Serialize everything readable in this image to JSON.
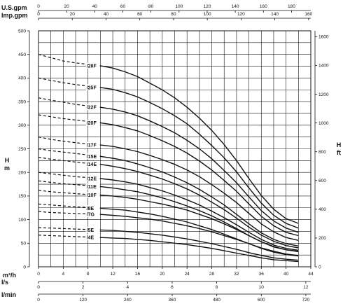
{
  "chart_data": {
    "type": "line",
    "x": [
      0,
      2,
      4,
      6,
      8,
      10,
      12,
      14,
      16,
      18,
      20,
      22,
      24,
      26,
      28,
      30,
      32,
      34,
      36,
      38,
      40,
      42
    ],
    "x_unit_label": "m³/h",
    "xlim": [
      0,
      44
    ],
    "x_ticks": [
      0,
      4,
      8,
      12,
      16,
      20,
      24,
      28,
      32,
      36,
      40,
      44
    ],
    "y_left_label": "H\nm",
    "ylim": [
      0,
      500
    ],
    "y_ticks": [
      0,
      50,
      100,
      150,
      200,
      250,
      300,
      350,
      400,
      450,
      500
    ],
    "y_right_label": "H\nft",
    "y_right_ticks": [
      0,
      200,
      400,
      600,
      800,
      1000,
      1200,
      1400,
      1600
    ],
    "top_axes": [
      {
        "label": "U.S.gpm",
        "ticks": [
          0,
          20,
          40,
          60,
          80,
          100,
          120,
          140,
          160,
          180
        ]
      },
      {
        "label": "Imp.gpm",
        "ticks": [
          0,
          20,
          40,
          60,
          80,
          100,
          120,
          140,
          160
        ]
      }
    ],
    "bottom_axes": [
      {
        "label": "l/s",
        "ticks": [
          0,
          2,
          4,
          6,
          8,
          10,
          12
        ]
      },
      {
        "label": "l/min",
        "ticks": [
          0,
          120,
          240,
          360,
          480,
          600,
          720
        ]
      }
    ],
    "grid": true,
    "series": [
      {
        "name": "/28F",
        "shutoff": 450,
        "values": [
          450,
          443,
          436,
          432,
          429,
          426,
          421,
          413,
          403,
          389,
          375,
          358,
          338,
          315,
          289,
          259,
          225,
          187,
          151,
          122,
          102,
          92
        ]
      },
      {
        "name": "/25F",
        "shutoff": 400,
        "values": [
          400,
          395,
          390,
          386,
          383,
          380,
          376,
          369,
          360,
          348,
          335,
          320,
          303,
          281,
          257,
          231,
          201,
          167,
          135,
          109,
          92,
          82
        ]
      },
      {
        "name": "/22F",
        "shutoff": 358,
        "values": [
          358,
          353,
          349,
          344,
          341,
          338,
          334,
          328,
          320,
          309,
          297,
          284,
          268,
          250,
          229,
          204,
          178,
          148,
          119,
          97,
          82,
          73
        ]
      },
      {
        "name": "/20F",
        "shutoff": 322,
        "values": [
          322,
          318,
          314,
          311,
          308,
          305,
          301,
          295,
          288,
          278,
          267,
          255,
          241,
          224,
          205,
          183,
          160,
          133,
          107,
          87,
          73,
          66
        ]
      },
      {
        "name": "/17F",
        "shutoff": 275,
        "values": [
          275,
          270,
          266,
          263,
          260,
          258,
          255,
          250,
          244,
          236,
          227,
          217,
          205,
          191,
          174,
          156,
          136,
          113,
          91,
          74,
          62,
          56
        ]
      },
      {
        "name": "/15E",
        "shutoff": 250,
        "values": [
          250,
          246,
          243,
          240,
          237,
          234,
          230,
          225,
          218,
          210,
          201,
          190,
          178,
          164,
          148,
          131,
          111,
          91,
          72,
          58,
          49,
          44
        ]
      },
      {
        "name": "/14E",
        "shutoff": 232,
        "values": [
          232,
          228,
          225,
          222,
          219,
          217,
          213,
          208,
          202,
          194,
          186,
          176,
          165,
          152,
          137,
          121,
          103,
          84,
          67,
          54,
          45,
          40
        ]
      },
      {
        "name": "/12E",
        "shutoff": 200,
        "values": [
          200,
          197,
          194,
          191,
          189,
          187,
          184,
          180,
          175,
          168,
          161,
          152,
          142,
          131,
          118,
          104,
          89,
          73,
          58,
          46,
          39,
          35
        ]
      },
      {
        "name": "/11E",
        "shutoff": 182,
        "values": [
          182,
          179,
          176,
          174,
          172,
          170,
          167,
          163,
          159,
          153,
          146,
          138,
          129,
          119,
          108,
          95,
          81,
          66,
          53,
          42,
          36,
          32
        ]
      },
      {
        "name": "/10F",
        "shutoff": 162,
        "values": [
          162,
          159,
          157,
          155,
          153,
          152,
          150,
          147,
          143,
          138,
          133,
          127,
          120,
          111,
          102,
          91,
          79,
          66,
          53,
          43,
          36,
          33
        ]
      },
      {
        "name": "/8E",
        "shutoff": 133,
        "values": [
          133,
          131,
          129,
          127,
          126,
          124,
          122,
          120,
          116,
          112,
          107,
          101,
          95,
          87,
          79,
          69,
          59,
          49,
          39,
          31,
          26,
          23
        ]
      },
      {
        "name": "/7G",
        "shutoff": 117,
        "values": [
          117,
          115,
          114,
          113,
          112,
          111,
          109,
          107,
          104,
          101,
          97,
          92,
          87,
          81,
          74,
          66,
          58,
          49,
          40,
          33,
          27,
          24
        ]
      },
      {
        "name": "/5E",
        "shutoff": 83,
        "values": [
          83,
          82,
          81,
          80,
          79,
          78,
          77,
          75,
          73,
          70,
          67,
          63,
          59,
          54,
          49,
          43,
          37,
          30,
          24,
          19,
          16,
          14
        ]
      },
      {
        "name": "/4E",
        "shutoff": 67,
        "values": [
          67,
          66,
          65,
          64,
          63,
          62,
          61,
          60,
          58,
          56,
          53,
          50,
          47,
          43,
          39,
          34,
          29,
          24,
          19,
          15,
          13,
          11
        ]
      }
    ]
  }
}
